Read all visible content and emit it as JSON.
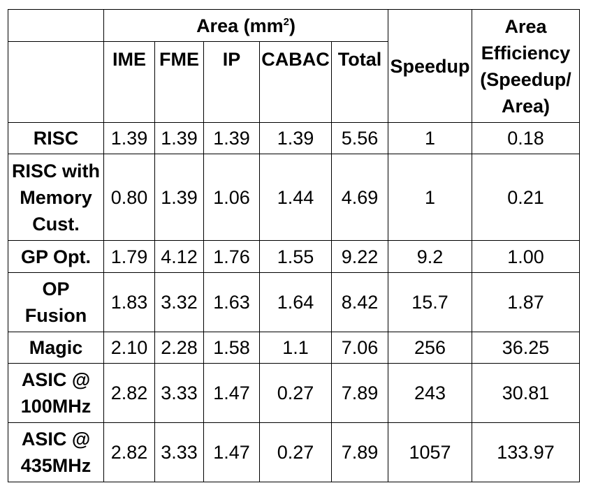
{
  "table": {
    "group_header": {
      "area_prefix": "Area (mm",
      "area_sup": "2",
      "area_suffix": ")"
    },
    "columns": {
      "ime": "IME",
      "fme": "FME",
      "ip": "IP",
      "cabac": "CABAC",
      "total": "Total",
      "speedup": "Speedup",
      "area_efficiency": "Area Efficiency (Speedup/ Area)"
    },
    "rows": [
      {
        "label": "RISC",
        "ime": "1.39",
        "fme": "1.39",
        "ip": "1.39",
        "cabac": "1.39",
        "total": "5.56",
        "speedup": "1",
        "efficiency": "0.18"
      },
      {
        "label": "RISC with Memory Cust.",
        "ime": "0.80",
        "fme": "1.39",
        "ip": "1.06",
        "cabac": "1.44",
        "total": "4.69",
        "speedup": "1",
        "efficiency": "0.21"
      },
      {
        "label": "GP Opt.",
        "ime": "1.79",
        "fme": "4.12",
        "ip": "1.76",
        "cabac": "1.55",
        "total": "9.22",
        "speedup": "9.2",
        "efficiency": "1.00"
      },
      {
        "label": "OP Fusion",
        "ime": "1.83",
        "fme": "3.32",
        "ip": "1.63",
        "cabac": "1.64",
        "total": "8.42",
        "speedup": "15.7",
        "efficiency": "1.87"
      },
      {
        "label": "Magic",
        "ime": "2.10",
        "fme": "2.28",
        "ip": "1.58",
        "cabac": "1.1",
        "total": "7.06",
        "speedup": "256",
        "efficiency": "36.25"
      },
      {
        "label": "ASIC @ 100MHz",
        "ime": "2.82",
        "fme": "3.33",
        "ip": "1.47",
        "cabac": "0.27",
        "total": "7.89",
        "speedup": "243",
        "efficiency": "30.81"
      },
      {
        "label": "ASIC @ 435MHz",
        "ime": "2.82",
        "fme": "3.33",
        "ip": "1.47",
        "cabac": "0.27",
        "total": "7.89",
        "speedup": "1057",
        "efficiency": "133.97"
      }
    ]
  }
}
